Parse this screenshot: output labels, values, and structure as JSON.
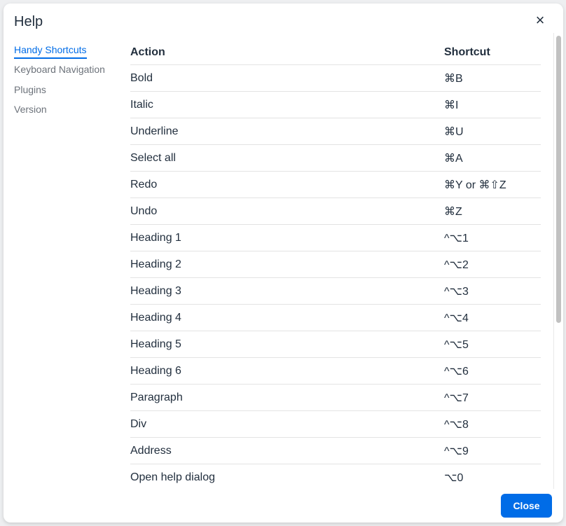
{
  "dialog": {
    "title": "Help",
    "close_label": "Close"
  },
  "nav": [
    "Handy Shortcuts",
    "Keyboard Navigation",
    "Plugins",
    "Version"
  ],
  "table": {
    "headers": [
      "Action",
      "Shortcut"
    ],
    "rows": [
      [
        "Bold",
        "⌘B"
      ],
      [
        "Italic",
        "⌘I"
      ],
      [
        "Underline",
        "⌘U"
      ],
      [
        "Select all",
        "⌘A"
      ],
      [
        "Redo",
        "⌘Y or ⌘⇧Z"
      ],
      [
        "Undo",
        "⌘Z"
      ],
      [
        "Heading 1",
        "^⌥1"
      ],
      [
        "Heading 2",
        "^⌥2"
      ],
      [
        "Heading 3",
        "^⌥3"
      ],
      [
        "Heading 4",
        "^⌥4"
      ],
      [
        "Heading 5",
        "^⌥5"
      ],
      [
        "Heading 6",
        "^⌥6"
      ],
      [
        "Paragraph",
        "^⌥7"
      ],
      [
        "Div",
        "^⌥8"
      ],
      [
        "Address",
        "^⌥9"
      ],
      [
        "Open help dialog",
        "⌥0"
      ]
    ]
  },
  "colors": {
    "accent": "#006ce7"
  }
}
